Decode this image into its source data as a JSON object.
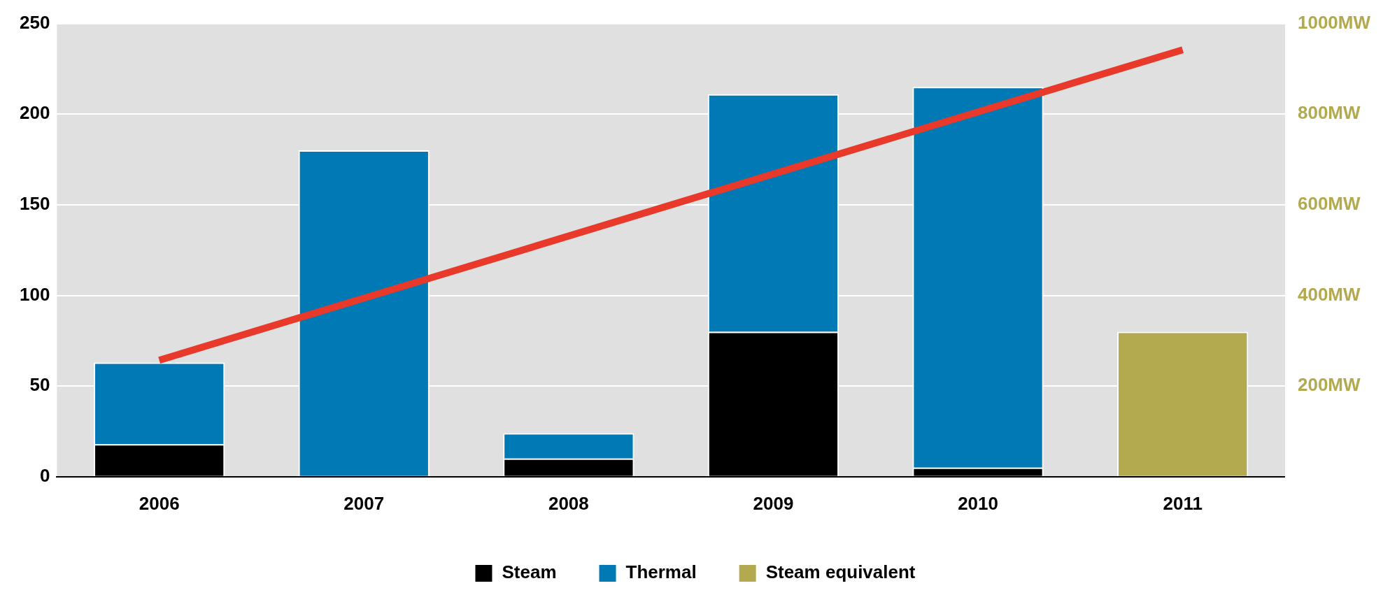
{
  "chart_data": {
    "type": "bar",
    "stacked": true,
    "categories": [
      "2006",
      "2007",
      "2008",
      "2009",
      "2010",
      "2011"
    ],
    "series": [
      {
        "name": "Steam",
        "color": "#000000",
        "values": [
          18,
          0,
          10,
          80,
          5,
          0
        ]
      },
      {
        "name": "Thermal",
        "color": "#0079b5",
        "values": [
          45,
          180,
          14,
          131,
          210,
          0
        ]
      },
      {
        "name": "Steam equivalent",
        "color": "#b3aa4f",
        "values": [
          0,
          0,
          0,
          0,
          0,
          80
        ]
      },
      {
        "type": "line",
        "axis": "y2",
        "color": "#e8392a",
        "values": [
          257,
          null,
          null,
          null,
          null,
          942
        ]
      }
    ],
    "ylim": [
      0,
      250
    ],
    "yticks": [
      0,
      50,
      100,
      150,
      200,
      250
    ],
    "y2lim": [
      0,
      1000
    ],
    "y2ticks": [
      {
        "value": 200,
        "label": "200MW"
      },
      {
        "value": 400,
        "label": "400MW"
      },
      {
        "value": 600,
        "label": "600MW"
      },
      {
        "value": 800,
        "label": "800MW"
      },
      {
        "value": 1000,
        "label": "1000MW"
      }
    ],
    "grid": "y",
    "legend": "bottom"
  }
}
